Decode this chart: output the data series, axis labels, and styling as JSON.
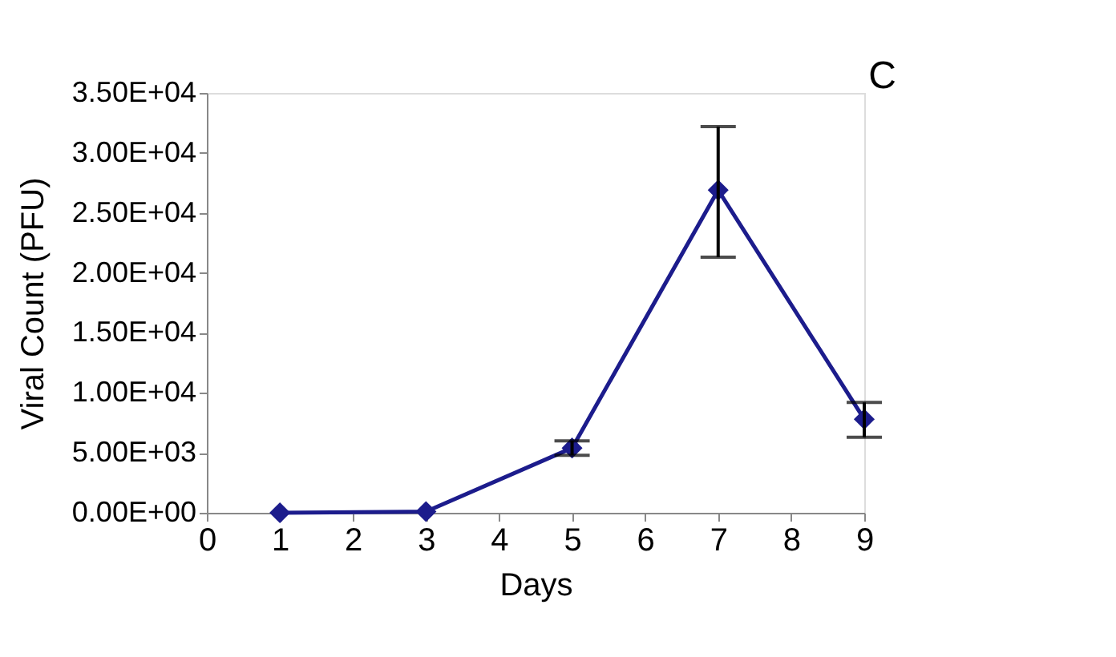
{
  "chart_data": {
    "type": "line",
    "xlabel": "Days",
    "ylabel": "Viral Count (PFU)",
    "annotations": [
      "C"
    ],
    "x": [
      1,
      3,
      5,
      7,
      9
    ],
    "series": [
      {
        "color": "#1c1c8c",
        "values": [
          0,
          100,
          5400,
          26900,
          7800
        ],
        "errors": [
          null,
          null,
          [
            4800,
            6000
          ],
          [
            21300,
            32200
          ],
          [
            6300,
            9200
          ]
        ]
      }
    ],
    "xlim": [
      0,
      9
    ],
    "xticks": [
      0,
      1,
      2,
      3,
      4,
      5,
      6,
      7,
      8,
      9
    ],
    "ylim": [
      0,
      35000
    ],
    "yticks": [
      {
        "value": 0,
        "label": "0.00E+00"
      },
      {
        "value": 5000,
        "label": "5.00E+03"
      },
      {
        "value": 10000,
        "label": "1.00E+04"
      },
      {
        "value": 15000,
        "label": "1.50E+04"
      },
      {
        "value": 20000,
        "label": "2.00E+04"
      },
      {
        "value": 25000,
        "label": "2.50E+04"
      },
      {
        "value": 30000,
        "label": "3.00E+04"
      },
      {
        "value": 35000,
        "label": "3.50E+04"
      }
    ],
    "grid": false,
    "marker": "diamond",
    "line_style": "solid"
  }
}
